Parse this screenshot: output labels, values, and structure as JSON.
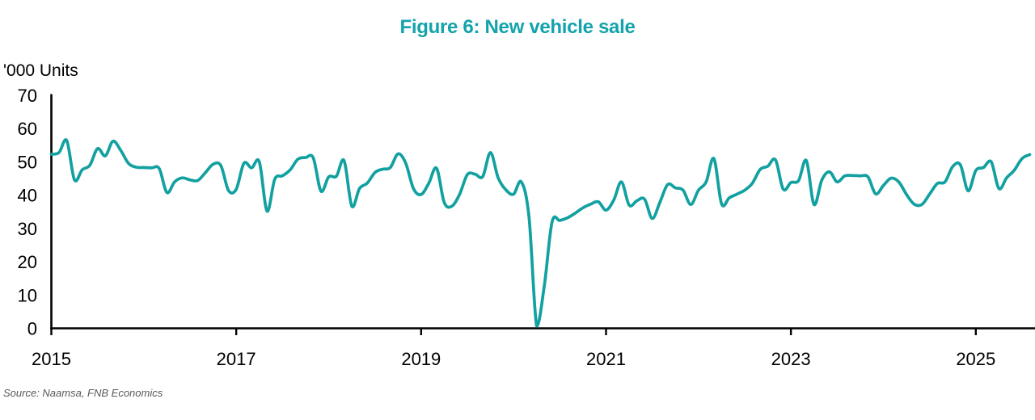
{
  "chart": {
    "title": "Figure 6: New vehicle sale",
    "y_axis_unit_label": "'000 Units",
    "source_note": "Source: Naamsa, FNB Economics",
    "colors": {
      "title_teal": "#13A3AB",
      "line_teal": "#12A0A0",
      "axis_black": "#000000",
      "source_gray": "#595959"
    }
  },
  "chart_data": {
    "type": "line",
    "title": "Figure 6: New vehicle sale",
    "ylabel": "'000 Units",
    "xlabel": "",
    "unit": "thousand units per month",
    "frequency": "monthly",
    "start": "2015-01",
    "end": "2025-08",
    "ylim": [
      0,
      70
    ],
    "yticks": [
      0,
      10,
      20,
      30,
      40,
      50,
      60,
      70
    ],
    "x_tick_labels": [
      "2015",
      "2017",
      "2019",
      "2021",
      "2023",
      "2025"
    ],
    "grid": false,
    "legend": "none",
    "line_color": "#12A0A0",
    "source": "Source: Naamsa, FNB Economics",
    "series": [
      {
        "name": "New vehicle sales ('000 units)",
        "values": [
          52.3,
          52.8,
          56.4,
          44.6,
          47.6,
          49.0,
          54.0,
          51.8,
          56.2,
          53.5,
          49.6,
          48.4,
          48.3,
          48.2,
          48.0,
          40.8,
          44.0,
          45.2,
          44.6,
          44.4,
          46.8,
          49.3,
          48.9,
          41.4,
          41.8,
          49.6,
          48.2,
          50.0,
          35.2,
          44.8,
          45.8,
          47.6,
          50.8,
          51.3,
          51.2,
          41.2,
          45.5,
          45.7,
          50.4,
          36.7,
          42.0,
          43.6,
          46.8,
          47.8,
          48.3,
          52.4,
          49.6,
          42.0,
          40.2,
          43.6,
          48.1,
          37.8,
          36.7,
          40.3,
          46.2,
          46.3,
          45.6,
          52.8,
          45.2,
          41.6,
          40.3,
          44.0,
          33.5,
          0.7,
          13.0,
          32.0,
          32.4,
          33.2,
          34.6,
          36.2,
          37.3,
          38.0,
          35.5,
          38.5,
          44.0,
          37.0,
          38.3,
          38.8,
          33.0,
          37.9,
          43.2,
          42.2,
          41.5,
          37.2,
          41.5,
          44.0,
          51.0,
          37.4,
          39.2,
          40.3,
          41.5,
          43.6,
          47.7,
          48.7,
          50.6,
          41.8,
          43.8,
          44.4,
          50.4,
          37.2,
          44.5,
          47.0,
          44.0,
          45.8,
          45.9,
          45.8,
          45.5,
          40.4,
          42.9,
          45.1,
          44.0,
          40.2,
          37.3,
          37.2,
          40.3,
          43.5,
          44.0,
          48.6,
          49.1,
          41.3,
          47.4,
          48.3,
          50.0,
          42.0,
          45.2,
          47.5,
          51.0,
          52.2
        ]
      }
    ]
  }
}
